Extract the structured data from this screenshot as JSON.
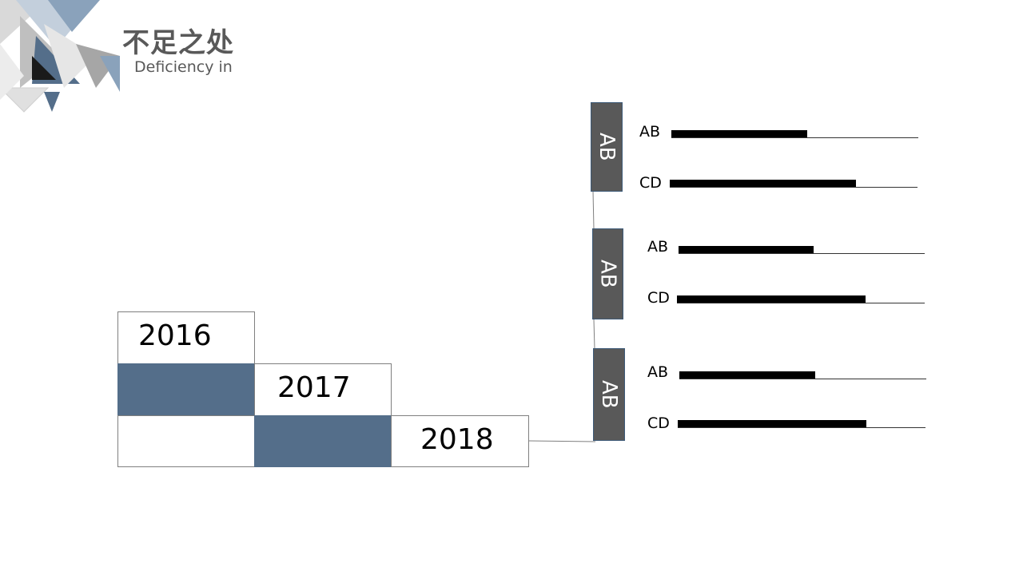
{
  "header": {
    "title": "不足之处",
    "subtitle": "Deficiency in"
  },
  "colors": {
    "accent": "#546e8a",
    "tag_bg": "#595959",
    "text": "#595959"
  },
  "chart_data": {
    "type": "bar",
    "timeline": [
      "2016",
      "2017",
      "2018"
    ],
    "groups": [
      {
        "label": "AB",
        "bars": [
          {
            "label": "AB",
            "value": 0.55
          },
          {
            "label": "CD",
            "value": 0.75
          }
        ]
      },
      {
        "label": "AB",
        "bars": [
          {
            "label": "AB",
            "value": 0.55
          },
          {
            "label": "CD",
            "value": 0.76
          }
        ]
      },
      {
        "label": "AB",
        "bars": [
          {
            "label": "AB",
            "value": 0.55
          },
          {
            "label": "CD",
            "value": 0.76
          }
        ]
      }
    ],
    "xlim": [
      0,
      1
    ]
  }
}
